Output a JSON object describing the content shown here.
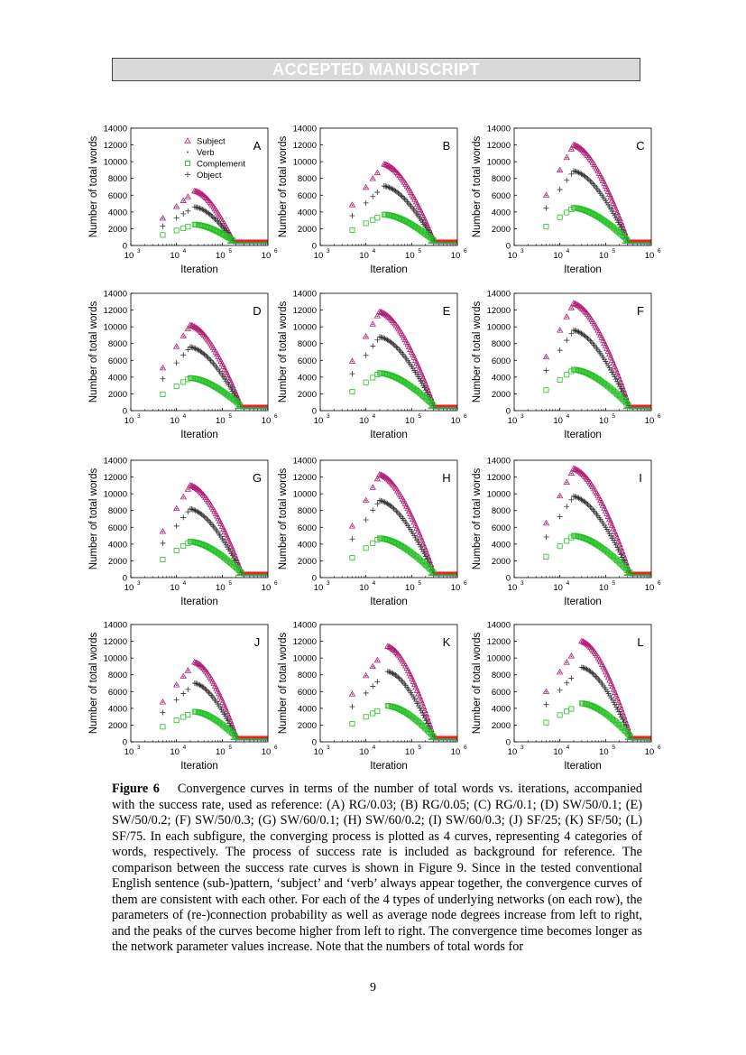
{
  "header": {
    "banner": "ACCEPTED MANUSCRIPT"
  },
  "figure": {
    "ylabel": "Number of total words",
    "xlabel": "Iteration",
    "yticks": [
      "0",
      "2000",
      "4000",
      "6000",
      "8000",
      "10000",
      "12000",
      "14000"
    ],
    "xtick_bases": [
      "10",
      "10",
      "10",
      "10"
    ],
    "xtick_exps": [
      "3",
      "4",
      "5",
      "6"
    ],
    "legend": [
      "Subject",
      "Verb",
      "Complement",
      "Object"
    ],
    "colors": {
      "subject": "#c0157a",
      "verb": "#555555",
      "complement": "#22c022",
      "object": "#333333",
      "baseline_red": "#ee2020",
      "baseline_blue": "#3344dd"
    }
  },
  "chart_data": [
    {
      "type": "scatter",
      "panel": "A",
      "xscale": "log",
      "xlim": [
        1000,
        1000000
      ],
      "ylim": [
        0,
        14000
      ],
      "series": [
        {
          "name": "Subject",
          "peak_x": 25000,
          "peak_y": 6500
        },
        {
          "name": "Verb",
          "peak_x": 25000,
          "peak_y": 6500
        },
        {
          "name": "Object",
          "peak_x": 25000,
          "peak_y": 4600
        },
        {
          "name": "Complement",
          "peak_x": 25000,
          "peak_y": 2500
        }
      ],
      "drop_x": 170000,
      "plateau_y": 600
    },
    {
      "type": "scatter",
      "panel": "B",
      "xscale": "log",
      "xlim": [
        1000,
        1000000
      ],
      "ylim": [
        0,
        14000
      ],
      "series": [
        {
          "name": "Subject",
          "peak_x": 25000,
          "peak_y": 9700
        },
        {
          "name": "Verb",
          "peak_x": 25000,
          "peak_y": 9700
        },
        {
          "name": "Object",
          "peak_x": 25000,
          "peak_y": 7100
        },
        {
          "name": "Complement",
          "peak_x": 25000,
          "peak_y": 3700
        }
      ],
      "drop_x": 300000,
      "plateau_y": 600
    },
    {
      "type": "scatter",
      "panel": "C",
      "xscale": "log",
      "xlim": [
        1000,
        1000000
      ],
      "ylim": [
        0,
        14000
      ],
      "series": [
        {
          "name": "Subject",
          "peak_x": 20000,
          "peak_y": 12000
        },
        {
          "name": "Verb",
          "peak_x": 20000,
          "peak_y": 12000
        },
        {
          "name": "Object",
          "peak_x": 20000,
          "peak_y": 8900
        },
        {
          "name": "Complement",
          "peak_x": 20000,
          "peak_y": 4500
        }
      ],
      "drop_x": 300000,
      "plateau_y": 600
    },
    {
      "type": "scatter",
      "panel": "D",
      "xscale": "log",
      "xlim": [
        1000,
        1000000
      ],
      "ylim": [
        0,
        14000
      ],
      "series": [
        {
          "name": "Subject",
          "peak_x": 20000,
          "peak_y": 10200
        },
        {
          "name": "Verb",
          "peak_x": 20000,
          "peak_y": 10200
        },
        {
          "name": "Object",
          "peak_x": 20000,
          "peak_y": 7600
        },
        {
          "name": "Complement",
          "peak_x": 20000,
          "peak_y": 3900
        }
      ],
      "drop_x": 250000,
      "plateau_y": 600
    },
    {
      "type": "scatter",
      "panel": "E",
      "xscale": "log",
      "xlim": [
        1000,
        1000000
      ],
      "ylim": [
        0,
        14000
      ],
      "series": [
        {
          "name": "Subject",
          "peak_x": 20000,
          "peak_y": 11800
        },
        {
          "name": "Verb",
          "peak_x": 20000,
          "peak_y": 11800
        },
        {
          "name": "Object",
          "peak_x": 20000,
          "peak_y": 8800
        },
        {
          "name": "Complement",
          "peak_x": 20000,
          "peak_y": 4500
        }
      ],
      "drop_x": 300000,
      "plateau_y": 600
    },
    {
      "type": "scatter",
      "panel": "F",
      "xscale": "log",
      "xlim": [
        1000,
        1000000
      ],
      "ylim": [
        0,
        14000
      ],
      "series": [
        {
          "name": "Subject",
          "peak_x": 20000,
          "peak_y": 12800
        },
        {
          "name": "Verb",
          "peak_x": 20000,
          "peak_y": 12800
        },
        {
          "name": "Object",
          "peak_x": 20000,
          "peak_y": 9600
        },
        {
          "name": "Complement",
          "peak_x": 20000,
          "peak_y": 4900
        }
      ],
      "drop_x": 320000,
      "plateau_y": 600
    },
    {
      "type": "scatter",
      "panel": "G",
      "xscale": "log",
      "xlim": [
        1000,
        1000000
      ],
      "ylim": [
        0,
        14000
      ],
      "series": [
        {
          "name": "Subject",
          "peak_x": 20000,
          "peak_y": 11000
        },
        {
          "name": "Verb",
          "peak_x": 20000,
          "peak_y": 11000
        },
        {
          "name": "Object",
          "peak_x": 20000,
          "peak_y": 8200
        },
        {
          "name": "Complement",
          "peak_x": 20000,
          "peak_y": 4300
        }
      ],
      "drop_x": 260000,
      "plateau_y": 600
    },
    {
      "type": "scatter",
      "panel": "H",
      "xscale": "log",
      "xlim": [
        1000,
        1000000
      ],
      "ylim": [
        0,
        14000
      ],
      "series": [
        {
          "name": "Subject",
          "peak_x": 20000,
          "peak_y": 12300
        },
        {
          "name": "Verb",
          "peak_x": 20000,
          "peak_y": 12300
        },
        {
          "name": "Object",
          "peak_x": 20000,
          "peak_y": 9200
        },
        {
          "name": "Complement",
          "peak_x": 20000,
          "peak_y": 4700
        }
      ],
      "drop_x": 300000,
      "plateau_y": 600
    },
    {
      "type": "scatter",
      "panel": "I",
      "xscale": "log",
      "xlim": [
        1000,
        1000000
      ],
      "ylim": [
        0,
        14000
      ],
      "series": [
        {
          "name": "Subject",
          "peak_x": 20000,
          "peak_y": 13000
        },
        {
          "name": "Verb",
          "peak_x": 20000,
          "peak_y": 13000
        },
        {
          "name": "Object",
          "peak_x": 20000,
          "peak_y": 9700
        },
        {
          "name": "Complement",
          "peak_x": 20000,
          "peak_y": 5000
        }
      ],
      "drop_x": 330000,
      "plateau_y": 600
    },
    {
      "type": "scatter",
      "panel": "J",
      "xscale": "log",
      "xlim": [
        1000,
        1000000
      ],
      "ylim": [
        0,
        14000
      ],
      "series": [
        {
          "name": "Subject",
          "peak_x": 25000,
          "peak_y": 9500
        },
        {
          "name": "Verb",
          "peak_x": 25000,
          "peak_y": 9500
        },
        {
          "name": "Object",
          "peak_x": 25000,
          "peak_y": 7000
        },
        {
          "name": "Complement",
          "peak_x": 25000,
          "peak_y": 3600
        }
      ],
      "drop_x": 200000,
      "plateau_y": 600
    },
    {
      "type": "scatter",
      "panel": "K",
      "xscale": "log",
      "xlim": [
        1000,
        1000000
      ],
      "ylim": [
        0,
        14000
      ],
      "series": [
        {
          "name": "Subject",
          "peak_x": 30000,
          "peak_y": 11400
        },
        {
          "name": "Verb",
          "peak_x": 30000,
          "peak_y": 11400
        },
        {
          "name": "Object",
          "peak_x": 30000,
          "peak_y": 8400
        },
        {
          "name": "Complement",
          "peak_x": 30000,
          "peak_y": 4300
        }
      ],
      "drop_x": 300000,
      "plateau_y": 600
    },
    {
      "type": "scatter",
      "panel": "L",
      "xscale": "log",
      "xlim": [
        1000,
        1000000
      ],
      "ylim": [
        0,
        14000
      ],
      "series": [
        {
          "name": "Subject",
          "peak_x": 30000,
          "peak_y": 12000
        },
        {
          "name": "Verb",
          "peak_x": 30000,
          "peak_y": 12000
        },
        {
          "name": "Object",
          "peak_x": 30000,
          "peak_y": 8900
        },
        {
          "name": "Complement",
          "peak_x": 30000,
          "peak_y": 4600
        }
      ],
      "drop_x": 350000,
      "plateau_y": 600
    }
  ],
  "caption": {
    "label": "Figure 6",
    "text": "Convergence curves in terms of the number of total words vs. iterations, accompanied with the success rate, used as reference: (A) RG/0.03; (B) RG/0.05; (C) RG/0.1; (D) SW/50/0.1; (E) SW/50/0.2; (F) SW/50/0.3; (G) SW/60/0.1; (H) SW/60/0.2; (I) SW/60/0.3; (J) SF/25; (K) SF/50; (L) SF/75. In each subfigure, the converging process is plotted as 4 curves, representing 4 categories of words, respectively. The process of success rate is included as background for reference. The comparison between the success rate curves is shown in Figure 9. Since in the tested conventional English sentence (sub-)pattern, ‘subject’ and ‘verb’ always appear together, the convergence curves of them are consistent with each other. For each of the 4 types of underlying networks (on each row), the parameters of (re-)connection probability as well as average node degrees increase from left to right, and the peaks of the curves become higher from left to right. The convergence time becomes longer as the network parameter values increase. Note that the numbers of total words for"
  },
  "page_number": "9"
}
